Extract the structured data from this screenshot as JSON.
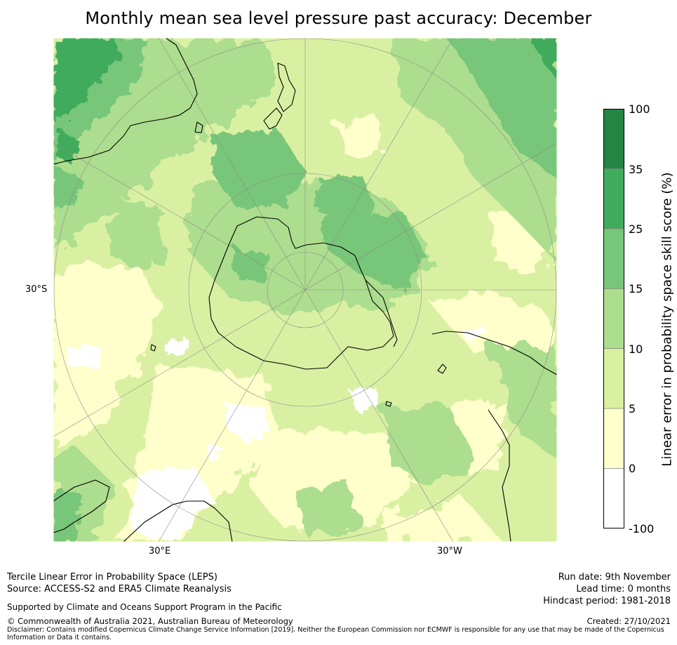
{
  "title": "Monthly mean sea level pressure past accuracy: December",
  "map": {
    "projection": "south-polar-stereographic",
    "axis_labels": {
      "lat_left": "30°S",
      "lon_bottom_left": "30°E",
      "lon_bottom_right": "30°W"
    },
    "colors": {
      "land_outline": "#000000",
      "ocean_default": "#d9efa4",
      "gridline": "#888888"
    }
  },
  "colorbar": {
    "title": "Linear error in probability space skill score (%)",
    "ticks": [
      "100",
      "35",
      "25",
      "15",
      "10",
      "5",
      "0",
      "-100"
    ],
    "bins": [
      {
        "range": "35 to 100",
        "color": "#238443"
      },
      {
        "range": "25 to 35",
        "color": "#41ab5d"
      },
      {
        "range": "15 to 25",
        "color": "#78c679"
      },
      {
        "range": "10 to 15",
        "color": "#addd8e"
      },
      {
        "range": "5 to 10",
        "color": "#d9f0a3"
      },
      {
        "range": "0 to 5",
        "color": "#ffffcc"
      },
      {
        "range": "-100 to 0",
        "color": "#ffffff"
      }
    ]
  },
  "footer": {
    "left_line1": "Tercile Linear Error in Probability Space (LEPS)",
    "left_line2": "Source: ACCESS-S2 and ERA5 Climate Reanalysis",
    "support": "Supported by Climate and Oceans Support Program in the Pacific",
    "copyright": "© Commonwealth of Australia 2021, Australian Bureau of Meteorology",
    "disclaimer_line1": "Disclaimer: Contains modified Copernicus Climate Change Service Information [2019]. Neither the European Commission nor ECMWF is responsible for any use that may be made of the Copernicus",
    "disclaimer_line2": "Information or Data it contains.",
    "run_date": "Run date: 9th November",
    "lead_time": "Lead time: 0 months",
    "hindcast": "Hindcast period: 1981-2018",
    "created": "Created: 27/10/2021"
  }
}
